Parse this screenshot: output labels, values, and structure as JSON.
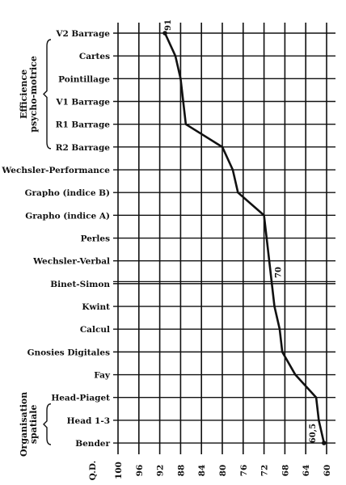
{
  "chart_data": {
    "type": "line",
    "orientation": "horizontal",
    "categories": [
      "V2 Barrage",
      "Cartes",
      "Pointillage",
      "V1 Barrage",
      "R1 Barrage",
      "R2 Barrage",
      "Wechsler-Performance",
      "Grapho (indice B)",
      "Grapho (indice A)",
      "Perles",
      "Wechsler-Verbal",
      "Binet-Simon",
      "Kwint",
      "Calcul",
      "Gnosies Digitales",
      "Fay",
      "Head-Piaget",
      "Head 1-3",
      "Bender"
    ],
    "series": [
      {
        "values": [
          91,
          89,
          88,
          87.5,
          87,
          80,
          78,
          77,
          72,
          71.5,
          71,
          70.5,
          70,
          69,
          68.5,
          66,
          62,
          61.5,
          60.5
        ]
      }
    ],
    "xlabel": "Q.D.",
    "xticks": [
      100,
      96,
      92,
      88,
      84,
      80,
      76,
      72,
      68,
      64,
      60
    ],
    "xlim": [
      100,
      59
    ],
    "x_reversed": true,
    "grid": true,
    "groups": [
      {
        "label": [
          "Efficience",
          "psycho-motrice"
        ],
        "from": "V2 Barrage",
        "to": "R2 Barrage"
      },
      {
        "label": [
          "Organisation",
          "spatiale"
        ],
        "from": "Head-Piaget",
        "to": "Bender"
      }
    ],
    "double_line_after": "Wechsler-Verbal",
    "annotations": [
      {
        "text": "91",
        "category": "V2 Barrage"
      },
      {
        "text": "70",
        "category": "Kwint"
      },
      {
        "text": "60,5",
        "category": "Bender"
      }
    ],
    "line_color": "#111111"
  }
}
